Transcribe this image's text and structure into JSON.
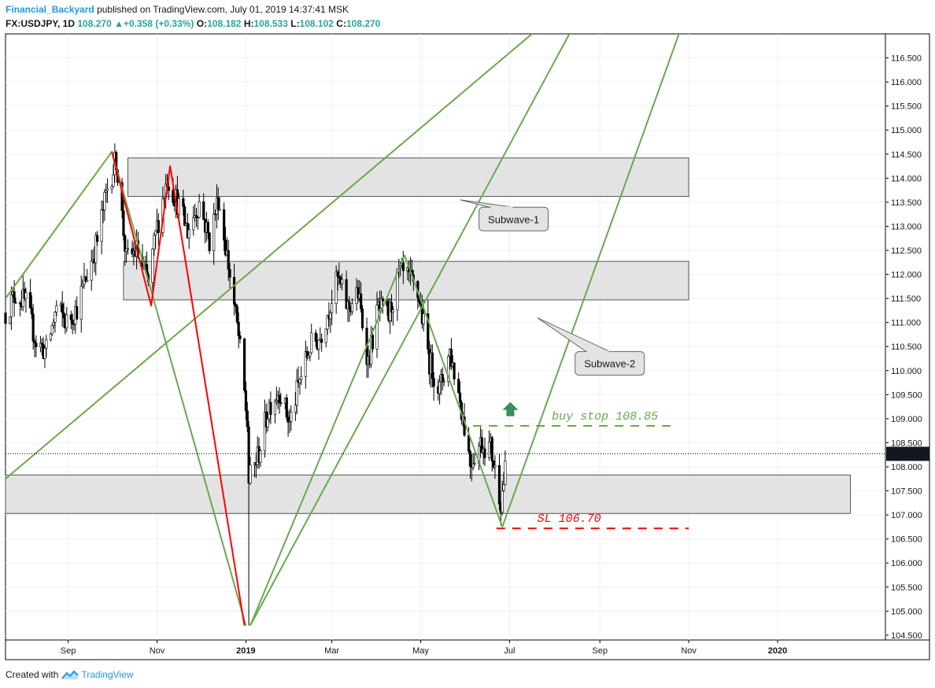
{
  "header": {
    "author": "Financial_Backyard",
    "published": " published on TradingView.com, July 01, 2019 14:37:41 MSK",
    "symbol": "FX:USDJPY, 1D",
    "last": "108.270",
    "up_arrow": "▲",
    "change": "+0.358 (+0.33%)",
    "o_label": "O:",
    "o_value": "108.182",
    "h_label": "H:",
    "h_value": "108.533",
    "l_label": "L:",
    "l_value": "108.102",
    "c_label": "C:",
    "c_value": "108.270"
  },
  "footer": {
    "created": "Created with",
    "brand": "TradingView"
  },
  "chart_data": {
    "type": "candlestick",
    "symbol": "FX:USDJPY",
    "interval": "1D",
    "ylim": [
      104.4,
      117.0
    ],
    "y_ticks": [
      104.5,
      105.0,
      105.5,
      106.0,
      106.5,
      107.0,
      107.5,
      108.0,
      108.5,
      109.0,
      109.5,
      110.0,
      110.5,
      111.0,
      111.5,
      112.0,
      112.5,
      113.0,
      113.5,
      114.0,
      114.5,
      115.0,
      115.5,
      116.0,
      116.5
    ],
    "y_tick_labels": [
      "104.500",
      "105.000",
      "105.500",
      "106.000",
      "106.500",
      "107.000",
      "107.500",
      "108.000",
      "108.500",
      "109.000",
      "109.500",
      "110.000",
      "110.500",
      "111.000",
      "111.500",
      "112.000",
      "112.500",
      "113.000",
      "113.500",
      "114.000",
      "114.500",
      "115.000",
      "115.500",
      "116.000",
      "116.500"
    ],
    "x_range": [
      "2018-07-20",
      "2020-03-15"
    ],
    "x_ticks": [
      {
        "date": "2018-09-01",
        "label": "Sep"
      },
      {
        "date": "2018-11-01",
        "label": "Nov"
      },
      {
        "date": "2019-01-01",
        "label": "2019"
      },
      {
        "date": "2019-03-01",
        "label": "Mar"
      },
      {
        "date": "2019-05-01",
        "label": "May"
      },
      {
        "date": "2019-07-01",
        "label": "Jul"
      },
      {
        "date": "2019-09-01",
        "label": "Sep"
      },
      {
        "date": "2019-11-01",
        "label": "Nov"
      },
      {
        "date": "2020-01-01",
        "label": "2020"
      }
    ],
    "last_price": 108.27,
    "last_price_label": "108.270",
    "price_path": [
      [
        "2018-07-20",
        111.2
      ],
      [
        "2018-07-27",
        111.6
      ],
      [
        "2018-08-03",
        111.4
      ],
      [
        "2018-08-10",
        110.6
      ],
      [
        "2018-08-17",
        110.4
      ],
      [
        "2018-08-24",
        111.3
      ],
      [
        "2018-08-31",
        111.0
      ],
      [
        "2018-09-07",
        111.3
      ],
      [
        "2018-09-14",
        112.0
      ],
      [
        "2018-09-21",
        112.7
      ],
      [
        "2018-09-28",
        113.8
      ],
      [
        "2018-10-04",
        114.4
      ],
      [
        "2018-10-11",
        112.3
      ],
      [
        "2018-10-18",
        112.5
      ],
      [
        "2018-10-26",
        111.8
      ],
      [
        "2018-11-01",
        113.0
      ],
      [
        "2018-11-08",
        114.0
      ],
      [
        "2018-11-15",
        113.5
      ],
      [
        "2018-11-22",
        112.9
      ],
      [
        "2018-11-30",
        113.5
      ],
      [
        "2018-12-07",
        112.7
      ],
      [
        "2018-12-13",
        113.6
      ],
      [
        "2018-12-20",
        112.2
      ],
      [
        "2018-12-27",
        110.7
      ],
      [
        "2019-01-02",
        108.9
      ],
      [
        "2019-01-03",
        107.7
      ],
      [
        "2019-01-10",
        108.3
      ],
      [
        "2019-01-17",
        109.3
      ],
      [
        "2019-01-24",
        109.6
      ],
      [
        "2019-01-31",
        108.9
      ],
      [
        "2019-02-07",
        109.8
      ],
      [
        "2019-02-14",
        110.5
      ],
      [
        "2019-02-21",
        110.7
      ],
      [
        "2019-02-28",
        111.4
      ],
      [
        "2019-03-05",
        111.9
      ],
      [
        "2019-03-12",
        111.3
      ],
      [
        "2019-03-19",
        111.6
      ],
      [
        "2019-03-26",
        110.2
      ],
      [
        "2019-04-02",
        111.3
      ],
      [
        "2019-04-09",
        111.1
      ],
      [
        "2019-04-16",
        112.0
      ],
      [
        "2019-04-23",
        111.9
      ],
      [
        "2019-04-30",
        111.5
      ],
      [
        "2019-05-07",
        110.2
      ],
      [
        "2019-05-14",
        109.6
      ],
      [
        "2019-05-21",
        110.4
      ],
      [
        "2019-05-28",
        109.4
      ],
      [
        "2019-06-04",
        108.1
      ],
      [
        "2019-06-11",
        108.5
      ],
      [
        "2019-06-18",
        108.4
      ],
      [
        "2019-06-25",
        107.3
      ],
      [
        "2019-06-28",
        107.9
      ],
      [
        "2019-07-01",
        108.27
      ]
    ],
    "annotations": [
      {
        "kind": "rect",
        "from": [
          "2018-10-12",
          114.42
        ],
        "to": [
          "2019-11-01",
          113.62
        ],
        "fill": "#e3e3e3"
      },
      {
        "kind": "rect",
        "from": [
          "2018-10-09",
          112.27
        ],
        "to": [
          "2019-11-01",
          111.47
        ],
        "fill": "#e3e3e3"
      },
      {
        "kind": "rect",
        "from": [
          "2018-07-20",
          107.83
        ],
        "to": [
          "2020-02-20",
          107.03
        ],
        "fill": "#e3e3e3"
      },
      {
        "kind": "line",
        "color": "#6aa84f",
        "points": [
          [
            "2018-07-20",
            111.5
          ],
          [
            "2018-10-01",
            114.55
          ],
          [
            "2019-01-01",
            104.7
          ]
        ]
      },
      {
        "kind": "line",
        "color": "#6aa84f",
        "points": [
          [
            "2018-07-20",
            107.75
          ],
          [
            "2019-08-01",
            117.4
          ]
        ]
      },
      {
        "kind": "line",
        "color": "#6aa84f",
        "points": [
          [
            "2019-01-04",
            104.7
          ],
          [
            "2019-04-20",
            112.4
          ]
        ]
      },
      {
        "kind": "line",
        "color": "#6aa84f",
        "points": [
          [
            "2019-01-04",
            104.7
          ],
          [
            "2019-08-20",
            117.5
          ]
        ]
      },
      {
        "kind": "line",
        "color": "#6aa84f",
        "points": [
          [
            "2019-04-20",
            112.4
          ],
          [
            "2019-06-26",
            106.75
          ]
        ]
      },
      {
        "kind": "line",
        "color": "#6aa84f",
        "points": [
          [
            "2019-06-26",
            106.75
          ],
          [
            "2019-10-30",
            117.4
          ]
        ]
      },
      {
        "kind": "line",
        "color": "#ff0000",
        "points": [
          [
            "2018-10-01",
            114.55
          ],
          [
            "2018-10-28",
            111.35
          ],
          [
            "2018-11-10",
            114.25
          ],
          [
            "2018-12-31",
            104.7
          ]
        ]
      },
      {
        "kind": "dashed",
        "color": "#6aa84f",
        "label": "buy stop 108.85",
        "price": 108.85,
        "from": "2019-06-06",
        "to": "2019-10-20"
      },
      {
        "kind": "dashed",
        "color": "#ff0000",
        "label": "SL 106.70",
        "price": 106.72,
        "from": "2019-06-22",
        "to": "2019-11-01"
      },
      {
        "kind": "callout",
        "label": "Subwave-1"
      },
      {
        "kind": "callout",
        "label": "Subwave-2"
      },
      {
        "kind": "arrow-up",
        "color": "#3c8c5c",
        "date": "2019-07-01",
        "price": 109.15
      }
    ]
  }
}
